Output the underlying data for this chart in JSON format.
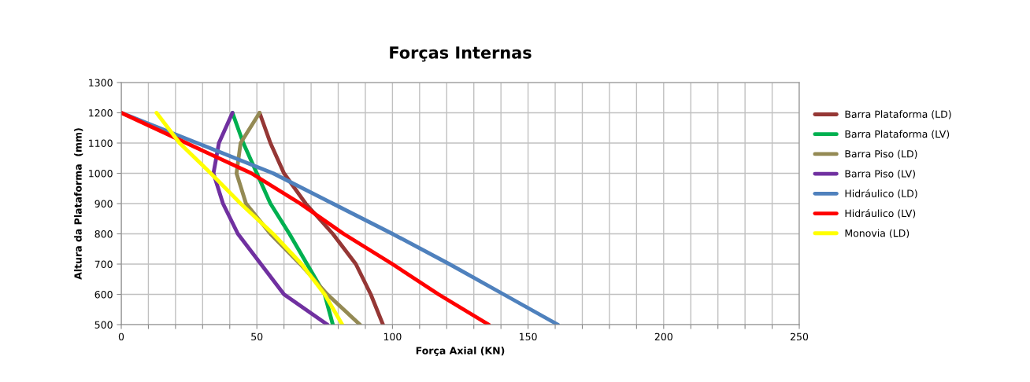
{
  "chart_data": {
    "type": "line",
    "title": "Forças Internas",
    "xlabel": "Força Axial (KN)",
    "ylabel": "Altura da Plataforma  (mm)",
    "xlim": [
      0,
      250
    ],
    "ylim": [
      500,
      1300
    ],
    "xticks": [
      0,
      {
        "value": 10,
        "label": null
      },
      {
        "value": 20,
        "label": null
      },
      {
        "value": 30,
        "label": null
      },
      {
        "value": 40,
        "label": null
      },
      50,
      {
        "value": 60,
        "label": null
      },
      {
        "value": 70,
        "label": null
      },
      {
        "value": 80,
        "label": null
      },
      {
        "value": 90,
        "label": null
      },
      100,
      {
        "value": 110,
        "label": null
      },
      {
        "value": 120,
        "label": null
      },
      {
        "value": 130,
        "label": null
      },
      {
        "value": 140,
        "label": null
      },
      150,
      {
        "value": 160,
        "label": null
      },
      {
        "value": 170,
        "label": null
      },
      {
        "value": 180,
        "label": null
      },
      {
        "value": 190,
        "label": null
      },
      200,
      {
        "value": 210,
        "label": null
      },
      {
        "value": 220,
        "label": null
      },
      {
        "value": 230,
        "label": null
      },
      {
        "value": 240,
        "label": null
      },
      250
    ],
    "yticks": [
      500,
      600,
      700,
      800,
      900,
      1000,
      1100,
      1200,
      1300
    ],
    "grid": true,
    "legend": "right",
    "marker": "none",
    "line_style": "solid",
    "series": [
      {
        "name": "Barra Plataforma (LD)",
        "color": "#953735",
        "x": [
          51,
          55,
          60,
          68,
          78,
          86.5,
          92,
          96.5
        ],
        "values": [
          1200,
          1100,
          1000,
          900,
          800,
          700,
          600,
          500
        ]
      },
      {
        "name": "Barra Plataforma (LV)",
        "color": "#00b050",
        "x": [
          41,
          45,
          50,
          55,
          62,
          68.5,
          75,
          78
        ],
        "values": [
          1200,
          1100,
          1000,
          900,
          800,
          700,
          600,
          500
        ]
      },
      {
        "name": "Barra Piso (LD)",
        "color": "#948a54",
        "x": [
          51,
          44,
          42.5,
          46,
          55,
          66,
          76,
          88
        ],
        "values": [
          1200,
          1100,
          1000,
          900,
          800,
          700,
          600,
          500
        ]
      },
      {
        "name": "Barra Piso (LV)",
        "color": "#7030a0",
        "x": [
          41,
          36,
          34,
          37.5,
          43,
          51.5,
          60,
          76
        ],
        "values": [
          1200,
          1100,
          1000,
          900,
          800,
          700,
          600,
          500
        ]
      },
      {
        "name": "Hidráulico (LD)",
        "color": "#4f81bd",
        "x": [
          0,
          28,
          56,
          78,
          100,
          121,
          141,
          161
        ],
        "values": [
          1200,
          1100,
          1000,
          900,
          800,
          700,
          600,
          500
        ]
      },
      {
        "name": "Hidráulico (LV)",
        "color": "#ff0000",
        "x": [
          0,
          24,
          48,
          66,
          82,
          100,
          117,
          135.5
        ],
        "values": [
          1200,
          1100,
          1000,
          900,
          800,
          700,
          600,
          500
        ]
      },
      {
        "name": "Monovia (LD)",
        "color": "#ffff00",
        "x": [
          13,
          21.5,
          33,
          44,
          56,
          66.5,
          75,
          81.5
        ],
        "values": [
          1200,
          1100,
          1000,
          900,
          800,
          700,
          600,
          500
        ]
      }
    ]
  }
}
